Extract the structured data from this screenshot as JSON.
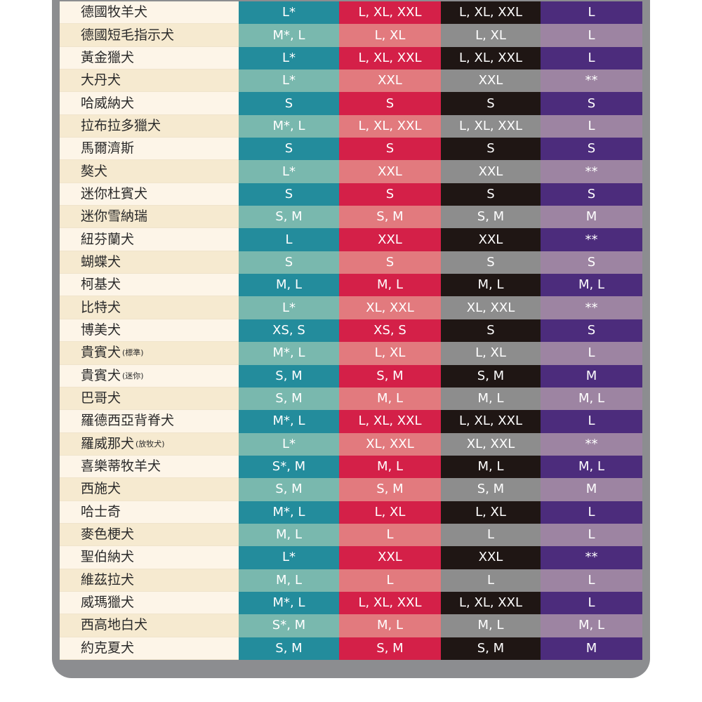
{
  "rows": [
    {
      "breed": "德國牧羊犬",
      "note": "",
      "sizes": [
        "L*",
        "L, XL, XXL",
        "L, XL, XXL",
        "L"
      ]
    },
    {
      "breed": "德國短毛指示犬",
      "note": "",
      "sizes": [
        "M*, L",
        "L, XL",
        "L, XL",
        "L"
      ]
    },
    {
      "breed": "黃金獵犬",
      "note": "",
      "sizes": [
        "L*",
        "L, XL, XXL",
        "L, XL, XXL",
        "L"
      ]
    },
    {
      "breed": "大丹犬",
      "note": "",
      "sizes": [
        "L*",
        "XXL",
        "XXL",
        "**"
      ]
    },
    {
      "breed": "哈威納犬",
      "note": "",
      "sizes": [
        "S",
        "S",
        "S",
        "S"
      ]
    },
    {
      "breed": "拉布拉多獵犬",
      "note": "",
      "sizes": [
        "M*, L",
        "L, XL, XXL",
        "L, XL, XXL",
        "L"
      ]
    },
    {
      "breed": "馬爾濟斯",
      "note": "",
      "sizes": [
        "S",
        "S",
        "S",
        "S"
      ]
    },
    {
      "breed": "獒犬",
      "note": "",
      "sizes": [
        "L*",
        "XXL",
        "XXL",
        "**"
      ]
    },
    {
      "breed": "迷你杜賓犬",
      "note": "",
      "sizes": [
        "S",
        "S",
        "S",
        "S"
      ]
    },
    {
      "breed": "迷你雪納瑞",
      "note": "",
      "sizes": [
        "S, M",
        "S, M",
        "S, M",
        "M"
      ]
    },
    {
      "breed": "紐芬蘭犬",
      "note": "",
      "sizes": [
        "L",
        "XXL",
        "XXL",
        "**"
      ]
    },
    {
      "breed": "蝴蝶犬",
      "note": "",
      "sizes": [
        "S",
        "S",
        "S",
        "S"
      ]
    },
    {
      "breed": "柯基犬",
      "note": "",
      "sizes": [
        "M, L",
        "M, L",
        "M, L",
        "M, L"
      ]
    },
    {
      "breed": "比特犬",
      "note": "",
      "sizes": [
        "L*",
        "XL, XXL",
        "XL, XXL",
        "**"
      ]
    },
    {
      "breed": "博美犬",
      "note": "",
      "sizes": [
        "XS, S",
        "XS, S",
        "S",
        "S"
      ]
    },
    {
      "breed": "貴賓犬",
      "note": "(標準)",
      "sizes": [
        "M*, L",
        "L, XL",
        "L, XL",
        "L"
      ]
    },
    {
      "breed": "貴賓犬",
      "note": "(迷你)",
      "sizes": [
        "S, M",
        "S, M",
        "S, M",
        "M"
      ]
    },
    {
      "breed": "巴哥犬",
      "note": "",
      "sizes": [
        "S, M",
        "M, L",
        "M, L",
        "M, L"
      ]
    },
    {
      "breed": "羅德西亞背脊犬",
      "note": "",
      "sizes": [
        "M*, L",
        "L, XL, XXL",
        "L, XL, XXL",
        "L"
      ]
    },
    {
      "breed": "羅威那犬",
      "note": "(放牧犬)",
      "sizes": [
        "L*",
        "XL, XXL",
        "XL, XXL",
        "**"
      ]
    },
    {
      "breed": "喜樂蒂牧羊犬",
      "note": "",
      "sizes": [
        "S*, M",
        "M, L",
        "M, L",
        "M, L"
      ]
    },
    {
      "breed": "西施犬",
      "note": "",
      "sizes": [
        "S, M",
        "S, M",
        "S, M",
        "M"
      ]
    },
    {
      "breed": "哈士奇",
      "note": "",
      "sizes": [
        "M*, L",
        "L, XL",
        "L, XL",
        "L"
      ]
    },
    {
      "breed": "麥色梗犬",
      "note": "",
      "sizes": [
        "M, L",
        "L",
        "L",
        "L"
      ]
    },
    {
      "breed": "聖伯納犬",
      "note": "",
      "sizes": [
        "L*",
        "XXL",
        "XXL",
        "**"
      ]
    },
    {
      "breed": "維茲拉犬",
      "note": "",
      "sizes": [
        "M, L",
        "L",
        "L",
        "L"
      ]
    },
    {
      "breed": "威瑪獵犬",
      "note": "",
      "sizes": [
        "M*, L",
        "L, XL, XXL",
        "L, XL, XXL",
        "L"
      ]
    },
    {
      "breed": "西高地白犬",
      "note": "",
      "sizes": [
        "S*, M",
        "M, L",
        "M, L",
        "M, L"
      ]
    },
    {
      "breed": "約克夏犬",
      "note": "",
      "sizes": [
        "S, M",
        "S, M",
        "S, M",
        "M"
      ]
    }
  ],
  "colors": {
    "frame": "#8c8d90",
    "teal": "#238c9c",
    "teal_light": "#79b8ae",
    "red": "#d42048",
    "red_light": "#e27a7e",
    "black": "#1f1614",
    "gray": "#8d8d8d",
    "purple": "#4c2c7c",
    "purple_light": "#9d84a2",
    "cream": "#fdf5e8",
    "cream_dark": "#f6ead0"
  }
}
